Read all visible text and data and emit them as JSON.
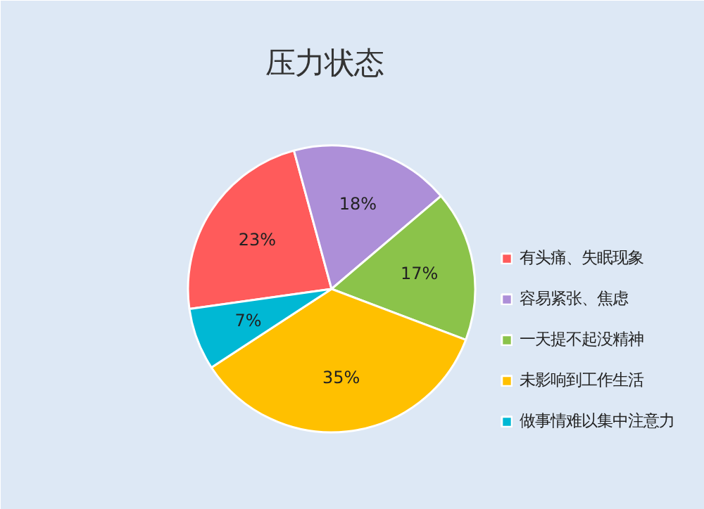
{
  "chart_data": {
    "type": "pie",
    "title": "压力状态",
    "categories": [
      "有头痛、失眠现象",
      "容易紧张、焦虑",
      "一天提不起没精神",
      "未影响到工作生活",
      "做事情难以集中注意力"
    ],
    "values": [
      23,
      18,
      17,
      35,
      7
    ],
    "colors": [
      "#ff5b5b",
      "#ad8fd8",
      "#8bc34a",
      "#ffc000",
      "#00b8d4"
    ],
    "value_labels": [
      "23%",
      "18%",
      "17%",
      "35%",
      "7%"
    ],
    "legend": "right"
  }
}
